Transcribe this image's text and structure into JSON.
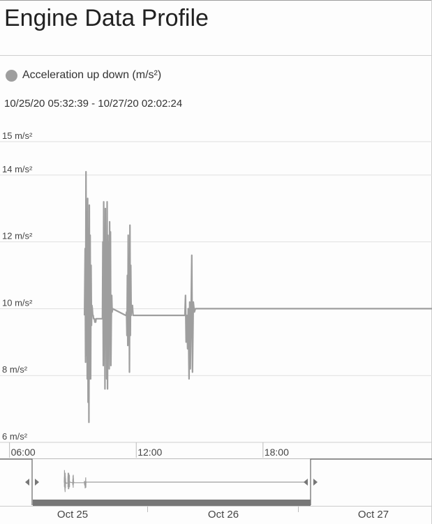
{
  "header": {
    "title": "Engine Data Profile"
  },
  "legend": {
    "label": "Acceleration up down (m/s²)",
    "color": "#9e9e9e"
  },
  "range_text": "10/25/20 05:32:39 - 10/27/20 02:02:24",
  "chart_data": {
    "type": "line",
    "title": "",
    "series": [
      {
        "name": "Acceleration up down (m/s²)",
        "color": "#9e9e9e",
        "x_hours": [
          9.55,
          9.58,
          9.6,
          9.62,
          9.64,
          9.66,
          9.68,
          9.7,
          9.72,
          9.74,
          9.76,
          9.78,
          9.8,
          9.82,
          9.84,
          9.86,
          9.88,
          9.9,
          9.92,
          9.94,
          9.96,
          9.98,
          10.0,
          10.02,
          10.04,
          10.06,
          10.08,
          10.1,
          10.4,
          10.42,
          10.44,
          10.46,
          10.48,
          10.5,
          10.52,
          10.54,
          10.56,
          10.58,
          10.6,
          10.62,
          10.64,
          10.66,
          10.68,
          10.7,
          10.72,
          10.74,
          10.76,
          10.78,
          10.8,
          10.82,
          10.84,
          10.86,
          10.88,
          11.5,
          11.52,
          11.54,
          11.56,
          11.58,
          11.6,
          11.62,
          11.64,
          11.66,
          11.68,
          11.7,
          11.72,
          11.74,
          11.76,
          11.78,
          11.8,
          11.82,
          11.85,
          11.9,
          12.0,
          14.3,
          14.33,
          14.36,
          14.4,
          14.43,
          14.46,
          14.5,
          14.53,
          14.56,
          14.6,
          14.63,
          14.66,
          14.7,
          14.75,
          14.8,
          15.5,
          16.95,
          16.97,
          16.99,
          17.01,
          17.03,
          17.05,
          17.07,
          17.09,
          17.11,
          17.13,
          17.15,
          17.18,
          17.2,
          17.25,
          17.3,
          30.0
        ],
        "y": [
          9.8,
          11.8,
          8.4,
          14.1,
          8.6,
          12.9,
          7.9,
          13.3,
          7.2,
          12.4,
          6.6,
          13.1,
          7.9,
          12.2,
          7.9,
          11.3,
          9.5,
          10.1,
          10.0,
          9.8,
          9.8,
          9.7,
          9.7,
          9.7,
          9.6,
          9.6,
          9.6,
          9.7,
          9.7,
          12.0,
          8.3,
          13.2,
          8.9,
          12.2,
          7.6,
          13.0,
          9.2,
          12.0,
          7.9,
          13.2,
          7.6,
          12.2,
          9.0,
          12.0,
          8.2,
          12.6,
          9.4,
          12.3,
          8.3,
          9.7,
          10.4,
          9.9,
          10.0,
          9.8,
          9.8,
          9.9,
          9.2,
          11.0,
          8.9,
          12.2,
          9.3,
          11.3,
          8.1,
          12.5,
          9.2,
          11.3,
          9.8,
          10.1,
          9.9,
          10.1,
          9.8,
          9.8,
          9.8,
          9.8,
          10.4,
          9.0,
          9.8,
          8.8,
          10.0,
          7.9,
          10.2,
          8.2,
          10.1,
          11.6,
          8.1,
          10.2,
          9.9,
          10.0,
          10.0,
          10.0,
          10.0,
          10.0,
          10.0,
          10.0,
          10.0,
          10.0,
          10.0,
          10.0,
          10.0,
          10.0,
          10.0,
          10.0,
          10.0,
          10.0,
          10.0
        ]
      }
    ],
    "ylabel": "",
    "y_ticks": [
      "6 m/s²",
      "8 m/s²",
      "10 m/s²",
      "12 m/s²",
      "14 m/s²",
      "15 m/s²"
    ],
    "y_tick_values": [
      6,
      8,
      10,
      12,
      14,
      15
    ],
    "ylim": [
      6,
      15
    ],
    "x_ticks": [
      "06:00",
      "12:00",
      "18:00"
    ],
    "x_tick_hours": [
      6,
      12,
      18
    ],
    "xlim_hours": [
      5.55,
      26.0
    ],
    "grid": true,
    "legend_position": "top-left"
  },
  "navigator": {
    "labels": [
      "Oct 25",
      "Oct 26",
      "Oct 27"
    ],
    "left_handle_icon": "resize-handle-icon",
    "right_handle_icon": "resize-handle-icon"
  }
}
